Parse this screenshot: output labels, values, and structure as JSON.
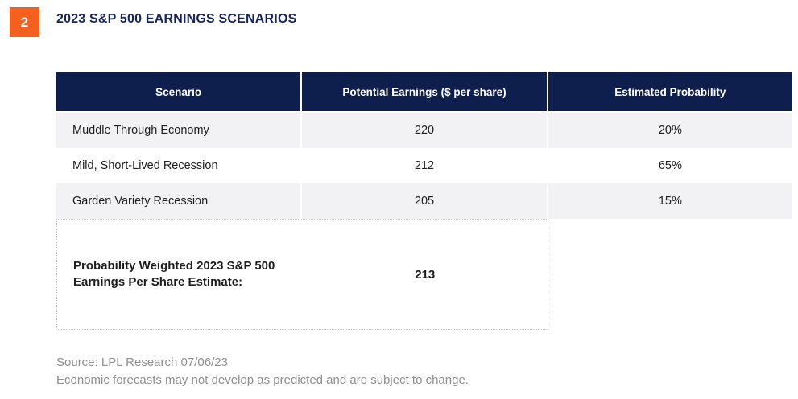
{
  "figure": {
    "number": "2",
    "title": "2023 S&P 500 EARNINGS SCENARIOS"
  },
  "table": {
    "columns": {
      "scenario": "Scenario",
      "earnings": "Potential Earnings ($ per share)",
      "probability": "Estimated Probability"
    },
    "rows": [
      {
        "scenario": "Muddle Through Economy",
        "earnings": "220",
        "probability": "20%"
      },
      {
        "scenario": "Mild, Short-Lived Recession",
        "earnings": "212",
        "probability": "65%"
      },
      {
        "scenario": "Garden Variety Recession",
        "earnings": "205",
        "probability": "15%"
      }
    ],
    "summary": {
      "label": "Probability Weighted 2023 S&P 500 Earnings Per Share Estimate:",
      "value": "213"
    }
  },
  "footnotes": {
    "source": "Source: LPL Research 07/06/23",
    "disclaimer": "Economic forecasts may not develop as predicted and are subject to change."
  },
  "colors": {
    "accent_orange": "#F4611E",
    "header_navy": "#0E1F4E",
    "title_navy": "#16265C",
    "row_gray": "#F2F2F4",
    "footnote_gray": "#8F8F8F"
  },
  "chart_data": {
    "type": "table",
    "title": "2023 S&P 500 EARNINGS SCENARIOS",
    "columns": [
      "Scenario",
      "Potential Earnings ($ per share)",
      "Estimated Probability"
    ],
    "rows": [
      [
        "Muddle Through Economy",
        220,
        "20%"
      ],
      [
        "Mild, Short-Lived Recession",
        212,
        "65%"
      ],
      [
        "Garden Variety Recession",
        205,
        "15%"
      ]
    ],
    "summary_row": {
      "label": "Probability Weighted 2023 S&P 500 Earnings Per Share Estimate:",
      "value": 213
    },
    "source": "Source: LPL Research 07/06/23",
    "note": "Economic forecasts may not develop as predicted and are subject to change."
  }
}
